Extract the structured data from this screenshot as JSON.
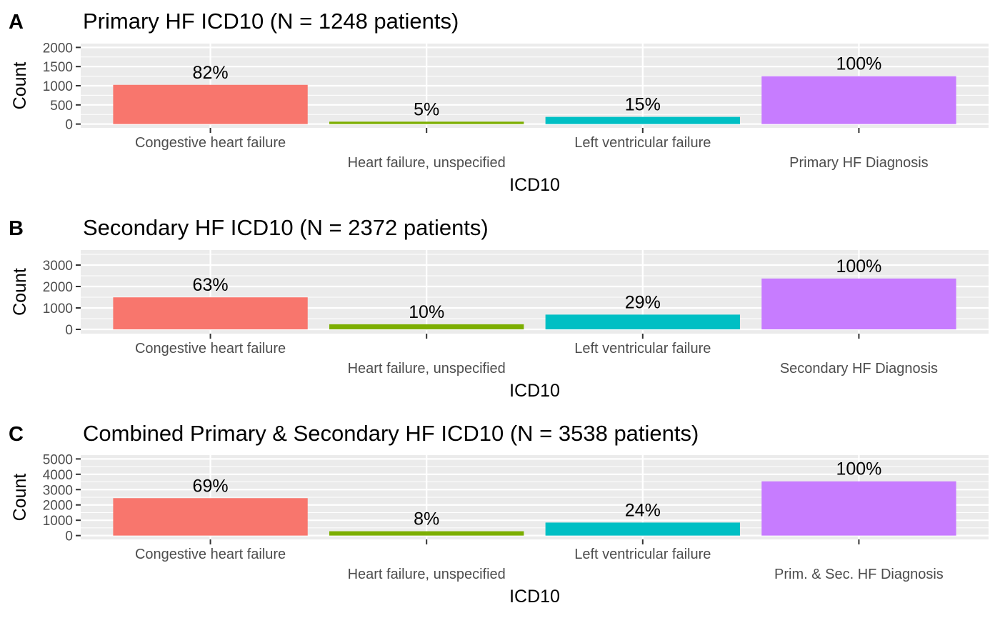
{
  "chart_data": [
    {
      "type": "bar",
      "tag": "A",
      "title": "Primary HF ICD10 (N = 1248 patients)",
      "xlabel": "ICD10",
      "ylabel": "Count",
      "ylim": [
        -100,
        2100
      ],
      "yticks": [
        0,
        500,
        1000,
        1500,
        2000
      ],
      "categories": [
        "Congestive heart failure",
        "Heart failure, unspecified",
        "Left ventricular failure",
        "Primary HF Diagnosis"
      ],
      "values": [
        1023,
        62,
        187,
        1248
      ],
      "labels": [
        "82%",
        "5%",
        "15%",
        "100%"
      ],
      "colors": [
        "#F8766D",
        "#7CAE00",
        "#00BFC4",
        "#C77CFF"
      ],
      "grid": true,
      "legend": "none"
    },
    {
      "type": "bar",
      "tag": "B",
      "title": "Secondary HF ICD10 (N = 2372 patients)",
      "xlabel": "ICD10",
      "ylabel": "Count",
      "ylim": [
        -200,
        3700
      ],
      "yticks": [
        0,
        1000,
        2000,
        3000
      ],
      "categories": [
        "Congestive heart failure",
        "Heart failure, unspecified",
        "Left ventricular failure",
        "Secondary HF Diagnosis"
      ],
      "values": [
        1494,
        237,
        688,
        2372
      ],
      "labels": [
        "63%",
        "10%",
        "29%",
        "100%"
      ],
      "colors": [
        "#F8766D",
        "#7CAE00",
        "#00BFC4",
        "#C77CFF"
      ],
      "grid": true,
      "legend": "none"
    },
    {
      "type": "bar",
      "tag": "C",
      "title": "Combined Primary & Secondary HF ICD10 (N = 3538 patients)",
      "xlabel": "ICD10",
      "ylabel": "Count",
      "ylim": [
        -250,
        5250
      ],
      "yticks": [
        0,
        1000,
        2000,
        3000,
        4000,
        5000
      ],
      "categories": [
        "Congestive heart failure",
        "Heart failure, unspecified",
        "Left ventricular failure",
        "Prim. & Sec. HF Diagnosis"
      ],
      "values": [
        2441,
        283,
        849,
        3538
      ],
      "labels": [
        "69%",
        "8%",
        "24%",
        "100%"
      ],
      "colors": [
        "#F8766D",
        "#7CAE00",
        "#00BFC4",
        "#C77CFF"
      ],
      "grid": true,
      "legend": "none"
    }
  ]
}
